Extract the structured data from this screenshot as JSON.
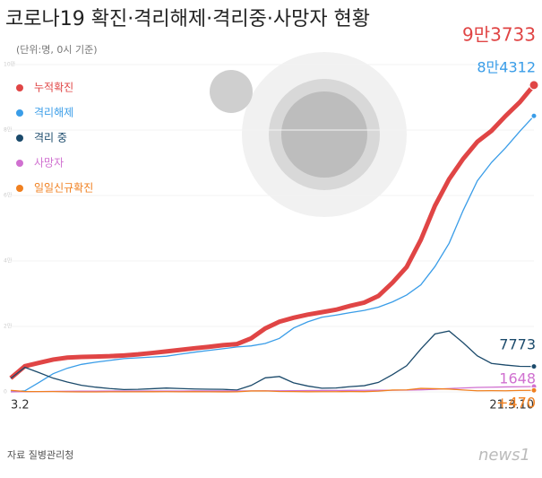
{
  "chart_data": {
    "type": "line",
    "title": "코로나19 확진·격리해제·격리중·사망자 현황",
    "subtitle": "(단위:명, 0시 기준)",
    "source": "자료 질병관리청",
    "logo": "news1",
    "categories": [
      "3.2",
      null,
      null,
      null,
      null,
      null,
      null,
      null,
      null,
      null,
      null,
      null,
      null,
      null,
      null,
      null,
      null,
      null,
      null,
      null,
      null,
      null,
      null,
      null,
      null,
      null,
      null,
      null,
      null,
      null,
      null,
      null,
      null,
      null,
      null,
      null,
      null,
      "21.3.10"
    ],
    "ylim": [
      0,
      100000
    ],
    "yticks": [
      {
        "value": 0,
        "label": "0"
      },
      {
        "value": 20000,
        "label": "2만"
      },
      {
        "value": 40000,
        "label": "4만"
      },
      {
        "value": 60000,
        "label": "6만"
      },
      {
        "value": 80000,
        "label": "8만"
      },
      {
        "value": 100000,
        "label": "10만"
      }
    ],
    "series": [
      {
        "name": "누적확진",
        "color": "#e04545",
        "values": [
          4212,
          7869,
          8897,
          9887,
          10480,
          10683,
          10774,
          10909,
          11142,
          11468,
          11902,
          12373,
          12850,
          13338,
          13771,
          14269,
          14626,
          16346,
          19400,
          21431,
          22657,
          23611,
          24353,
          25108,
          26271,
          27284,
          29311,
          33375,
          38161,
          46453,
          56872,
          64979,
          71241,
          76429,
          79762,
          84325,
          88516,
          93733
        ],
        "value_labels": [
          null,
          null,
          null,
          null,
          null,
          null,
          null,
          null,
          null,
          null,
          null,
          null,
          null,
          null,
          null,
          null,
          null,
          null,
          null,
          null,
          null,
          null,
          null,
          null,
          null,
          null,
          null,
          null,
          null,
          null,
          null,
          null,
          null,
          null,
          null,
          null,
          null,
          "9만3733"
        ]
      },
      {
        "name": "격리해제",
        "color": "#3a9de8",
        "values": [
          30,
          333,
          2909,
          5567,
          7243,
          8411,
          9072,
          9632,
          10162,
          10405,
          10654,
          10908,
          11537,
          12144,
          12660,
          13183,
          13729,
          14063,
          14800,
          16346,
          19500,
          21400,
          22800,
          23470,
          24200,
          24900,
          25900,
          27500,
          29600,
          32700,
          38300,
          45400,
          55500,
          64500,
          70100,
          74600,
          79600,
          84312
        ],
        "value_labels": [
          null,
          null,
          null,
          null,
          null,
          null,
          null,
          null,
          null,
          null,
          null,
          null,
          null,
          null,
          null,
          null,
          null,
          null,
          null,
          null,
          null,
          null,
          null,
          null,
          null,
          null,
          null,
          null,
          null,
          null,
          null,
          null,
          null,
          null,
          null,
          null,
          null,
          "8만4312"
        ]
      },
      {
        "name": "격리 중",
        "color": "#1b4a6b",
        "values": [
          4150,
          7500,
          5900,
          4200,
          3000,
          2030,
          1450,
          1030,
          720,
          790,
          970,
          1180,
          1030,
          900,
          820,
          785,
          590,
          1980,
          4300,
          4700,
          2780,
          1800,
          1130,
          1200,
          1600,
          1900,
          2900,
          5300,
          8000,
          13100,
          17700,
          18600,
          15000,
          11000,
          8700,
          8200,
          7800,
          7773
        ],
        "value_labels": [
          null,
          null,
          null,
          null,
          null,
          null,
          null,
          null,
          null,
          null,
          null,
          null,
          null,
          null,
          null,
          null,
          null,
          null,
          null,
          null,
          null,
          null,
          null,
          null,
          null,
          null,
          null,
          null,
          null,
          null,
          null,
          null,
          null,
          null,
          null,
          null,
          null,
          "7773"
        ]
      },
      {
        "name": "사망자",
        "color": "#d070d0",
        "values": [
          22,
          66,
          104,
          165,
          211,
          237,
          250,
          256,
          264,
          270,
          276,
          280,
          282,
          289,
          294,
          301,
          304,
          306,
          321,
          341,
          367,
          401,
          425,
          444,
          461,
          478,
          494,
          523,
          549,
          634,
          808,
          1027,
          1195,
          1378,
          1448,
          1527,
          1585,
          1648
        ],
        "value_labels": [
          null,
          null,
          null,
          null,
          null,
          null,
          null,
          null,
          null,
          null,
          null,
          null,
          null,
          null,
          null,
          null,
          null,
          null,
          null,
          null,
          null,
          null,
          null,
          null,
          null,
          null,
          null,
          null,
          null,
          null,
          null,
          null,
          null,
          null,
          null,
          null,
          null,
          "1648"
        ]
      },
      {
        "name": "일일신규확진",
        "color": "#f08020",
        "values": [
          476,
          114,
          98,
          101,
          30,
          9,
          9,
          35,
          32,
          27,
          50,
          67,
          43,
          45,
          26,
          18,
          28,
          297,
          308,
          136,
          110,
          50,
          69,
          76,
          103,
          89,
          230,
          569,
          615,
          1078,
          970,
          870,
          580,
          349,
          370,
          343,
          440,
          470
        ],
        "value_labels": [
          null,
          null,
          null,
          null,
          null,
          null,
          null,
          null,
          null,
          null,
          null,
          null,
          null,
          null,
          null,
          null,
          null,
          null,
          null,
          null,
          null,
          null,
          null,
          null,
          null,
          null,
          null,
          null,
          null,
          null,
          null,
          null,
          null,
          null,
          null,
          null,
          null,
          "+470"
        ]
      }
    ]
  }
}
